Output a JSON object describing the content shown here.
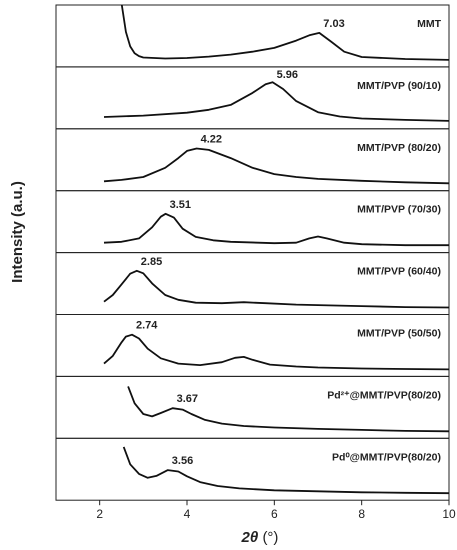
{
  "chart_data": {
    "type": "line",
    "layout": "stacked-panels",
    "xlabel_main": "2θ",
    "xlabel_unit": "(°)",
    "ylabel": "Intensity (a.u.)",
    "xlim": [
      1,
      10
    ],
    "xticks": [
      2,
      4,
      6,
      8,
      10
    ],
    "yticks_shown": false,
    "panels": [
      {
        "name": "MMT",
        "peak_label": "7.03",
        "peak_x": 7.03,
        "x": [
          2.5,
          2.6,
          2.7,
          2.8,
          2.9,
          3.0,
          3.5,
          4.0,
          4.5,
          5.0,
          5.5,
          6.0,
          6.5,
          6.8,
          7.03,
          7.3,
          7.6,
          8.0,
          9.0,
          10.0
        ],
        "y": [
          1.2,
          0.6,
          0.3,
          0.16,
          0.1,
          0.07,
          0.05,
          0.06,
          0.09,
          0.13,
          0.19,
          0.27,
          0.42,
          0.53,
          0.58,
          0.4,
          0.19,
          0.08,
          0.04,
          0.02
        ]
      },
      {
        "name": "MMT/PVP (90/10)",
        "peak_label": "5.96",
        "peak_x": 5.96,
        "x": [
          2.1,
          3.0,
          4.0,
          4.5,
          5.0,
          5.5,
          5.8,
          5.96,
          6.2,
          6.5,
          7.0,
          7.5,
          8.0,
          9.0,
          10.0
        ],
        "y": [
          0.12,
          0.15,
          0.21,
          0.27,
          0.37,
          0.62,
          0.8,
          0.84,
          0.7,
          0.45,
          0.22,
          0.13,
          0.09,
          0.06,
          0.04
        ]
      },
      {
        "name": "MMT/PVP (80/20)",
        "peak_label": "4.22",
        "peak_x": 4.22,
        "x": [
          2.1,
          2.5,
          3.0,
          3.5,
          3.8,
          4.0,
          4.22,
          4.5,
          5.0,
          5.5,
          6.0,
          6.5,
          7.0,
          8.0,
          9.0,
          10.0
        ],
        "y": [
          0.07,
          0.1,
          0.16,
          0.35,
          0.55,
          0.7,
          0.75,
          0.72,
          0.55,
          0.35,
          0.22,
          0.16,
          0.12,
          0.08,
          0.05,
          0.03
        ]
      },
      {
        "name": "MMT/PVP (70/30)",
        "peak_label": "3.51",
        "peak_x": 3.51,
        "x": [
          2.1,
          2.5,
          2.9,
          3.2,
          3.4,
          3.51,
          3.7,
          3.9,
          4.2,
          4.6,
          5.0,
          6.0,
          6.5,
          6.8,
          7.0,
          7.2,
          7.6,
          8.0,
          9.0,
          10.0
        ],
        "y": [
          0.08,
          0.1,
          0.17,
          0.4,
          0.62,
          0.68,
          0.6,
          0.37,
          0.2,
          0.13,
          0.1,
          0.07,
          0.08,
          0.17,
          0.21,
          0.17,
          0.08,
          0.05,
          0.03,
          0.03
        ]
      },
      {
        "name": "MMT/PVP (60/40)",
        "peak_label": "2.85",
        "peak_x": 2.85,
        "x": [
          2.1,
          2.3,
          2.5,
          2.7,
          2.85,
          3.0,
          3.2,
          3.5,
          3.8,
          4.2,
          4.8,
          5.3,
          5.8,
          6.5,
          7.0,
          8.0,
          9.0,
          10.0
        ],
        "y": [
          0.14,
          0.28,
          0.5,
          0.72,
          0.78,
          0.73,
          0.52,
          0.28,
          0.18,
          0.12,
          0.11,
          0.13,
          0.11,
          0.08,
          0.07,
          0.05,
          0.03,
          0.02
        ]
      },
      {
        "name": "MMT/PVP (50/50)",
        "peak_label": "2.74",
        "peak_x": 2.74,
        "x": [
          2.1,
          2.3,
          2.5,
          2.6,
          2.74,
          2.9,
          3.1,
          3.4,
          3.8,
          4.3,
          4.8,
          5.1,
          5.3,
          5.5,
          5.9,
          6.5,
          7.0,
          8.0,
          9.0,
          10.0
        ],
        "y": [
          0.14,
          0.3,
          0.58,
          0.7,
          0.74,
          0.66,
          0.45,
          0.25,
          0.14,
          0.11,
          0.17,
          0.26,
          0.28,
          0.22,
          0.12,
          0.08,
          0.06,
          0.04,
          0.03,
          0.02
        ]
      },
      {
        "name": "Pd²⁺@MMT/PVP(80/20)",
        "peak_label": "3.67",
        "peak_x": 3.67,
        "x": [
          2.65,
          2.8,
          3.0,
          3.2,
          3.4,
          3.67,
          3.9,
          4.1,
          4.4,
          4.8,
          5.3,
          6.0,
          7.0,
          8.0,
          9.0,
          10.0
        ],
        "y": [
          0.95,
          0.6,
          0.38,
          0.33,
          0.4,
          0.5,
          0.47,
          0.38,
          0.26,
          0.18,
          0.13,
          0.1,
          0.07,
          0.05,
          0.03,
          0.02
        ]
      },
      {
        "name": "Pd⁰@MMT/PVP(80/20)",
        "peak_label": "3.56",
        "peak_x": 3.56,
        "x": [
          2.55,
          2.7,
          2.9,
          3.1,
          3.3,
          3.56,
          3.8,
          4.0,
          4.3,
          4.7,
          5.2,
          6.0,
          7.0,
          8.0,
          9.0,
          10.0
        ],
        "y": [
          0.98,
          0.62,
          0.42,
          0.34,
          0.38,
          0.5,
          0.47,
          0.37,
          0.25,
          0.17,
          0.12,
          0.08,
          0.06,
          0.04,
          0.03,
          0.02
        ]
      }
    ]
  }
}
